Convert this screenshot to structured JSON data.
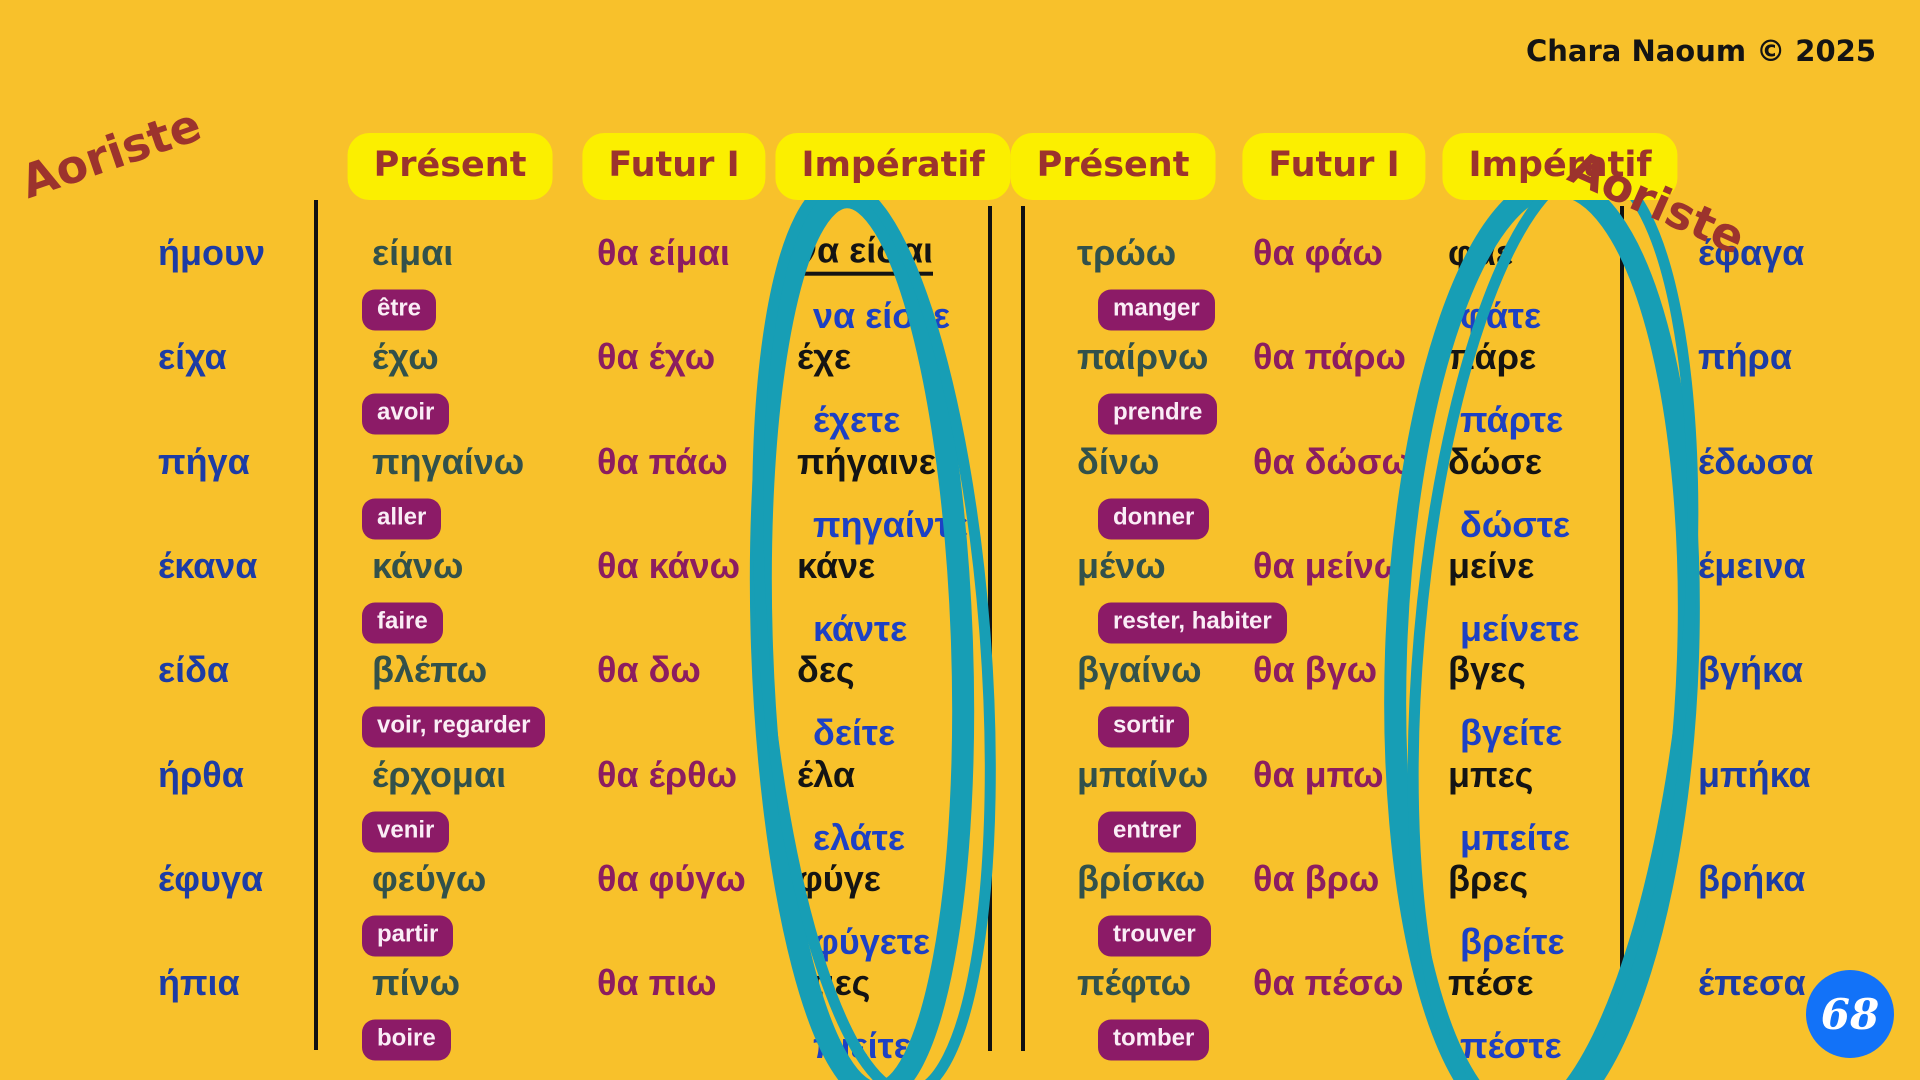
{
  "titles": {
    "left": "Aoriste",
    "right": "Aoriste"
  },
  "copyright": "Chara Naoum © 2025",
  "page_number": "68",
  "column_headers": [
    "Présent",
    "Futur I",
    "Impératif",
    "Présent",
    "Futur I",
    "Impératif"
  ],
  "colors": {
    "background": "#F8C12B",
    "header_chip_yellow": "#FBEF00",
    "header_text_red": "#9C332D",
    "aorist_blue": "#1D3CA5",
    "imperative_plural_blue": "#1D41C4",
    "present_green": "#32514B",
    "futur_magenta": "#8C1D60",
    "badge_purple": "#8C1B67",
    "badge_text": "#FAEDF6",
    "imperative_black": "#141414",
    "highlight_teal": "#179EB5",
    "page_badge_blue": "#1272F8"
  },
  "groups": [
    {
      "rows": [
        {
          "aorist": "ήμουν",
          "present": "είμαι",
          "fr": "être",
          "futur": "θα είμαι",
          "imp_sg": "να είσαι",
          "imp_pl": "να είστε",
          "underline_sg": true
        },
        {
          "aorist": "είχα",
          "present": "έχω",
          "fr": "avoir",
          "futur": "θα έχω",
          "imp_sg": "έχε",
          "imp_pl": "έχετε"
        },
        {
          "aorist": "πήγα",
          "present": "πηγαίνω",
          "fr": "aller",
          "futur": "θα πάω",
          "imp_sg": "πήγαινε",
          "imp_pl": "πηγαίντε"
        },
        {
          "aorist": "έκανα",
          "present": "κάνω",
          "fr": "faire",
          "futur": "θα κάνω",
          "imp_sg": "κάνε",
          "imp_pl": "κάντε"
        },
        {
          "aorist": "είδα",
          "present": "βλέπω",
          "fr": "voir, regarder",
          "futur": "θα δω",
          "imp_sg": "δες",
          "imp_pl": "δείτε"
        },
        {
          "aorist": "ήρθα",
          "present": "έρχομαι",
          "fr": "venir",
          "futur": "θα έρθω",
          "imp_sg": "έλα",
          "imp_pl": "ελάτε"
        },
        {
          "aorist": "έφυγα",
          "present": "φεύγω",
          "fr": "partir",
          "futur": "θα φύγω",
          "imp_sg": "φύγε",
          "imp_pl": "φύγετε"
        },
        {
          "aorist": "ήπια",
          "present": "πίνω",
          "fr": "boire",
          "futur": "θα πιω",
          "imp_sg": "πιες",
          "imp_pl": "πιείτε"
        }
      ]
    },
    {
      "rows": [
        {
          "present": "τρώω",
          "fr": "manger",
          "futur": "θα φάω",
          "imp_sg": "φάε",
          "imp_pl": "φάτε",
          "aorist": "έφαγα"
        },
        {
          "present": "παίρνω",
          "fr": "prendre",
          "futur": "θα πάρω",
          "imp_sg": "πάρε",
          "imp_pl": "πάρτε",
          "aorist": "πήρα"
        },
        {
          "present": "δίνω",
          "fr": "donner",
          "futur": "θα δώσω",
          "imp_sg": "δώσε",
          "imp_pl": "δώστε",
          "aorist": "έδωσα"
        },
        {
          "present": "μένω",
          "fr": "rester, habiter",
          "futur": "θα μείνω",
          "imp_sg": "μείνε",
          "imp_pl": "μείνετε",
          "aorist": "έμεινα"
        },
        {
          "present": "βγαίνω",
          "fr": "sortir",
          "futur": "θα βγω",
          "imp_sg": "βγες",
          "imp_pl": "βγείτε",
          "aorist": "βγήκα"
        },
        {
          "present": "μπαίνω",
          "fr": "entrer",
          "futur": "θα μπω",
          "imp_sg": "μπες",
          "imp_pl": "μπείτε",
          "aorist": "μπήκα"
        },
        {
          "present": "βρίσκω",
          "fr": "trouver",
          "futur": "θα βρω",
          "imp_sg": "βρες",
          "imp_pl": "βρείτε",
          "aorist": "βρήκα"
        },
        {
          "present": "πέφτω",
          "fr": "tomber",
          "futur": "θα πέσω",
          "imp_sg": "πέσε",
          "imp_pl": "πέστε",
          "aorist": "έπεσα"
        }
      ]
    }
  ]
}
